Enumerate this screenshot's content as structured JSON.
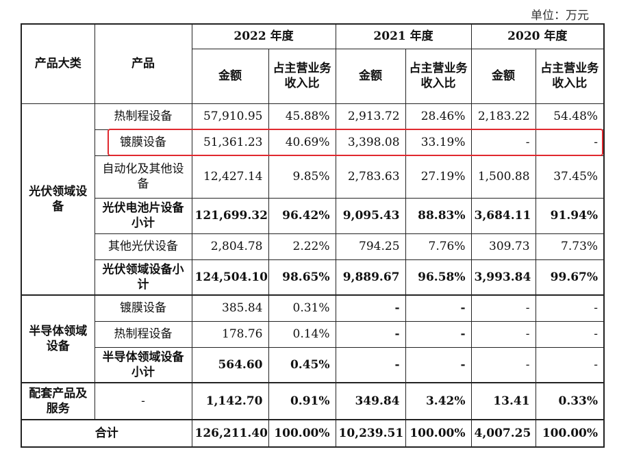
{
  "unit_label": "单位：万元",
  "header": {
    "col_category": "产品大类",
    "col_product": "产品",
    "years": [
      "2022 年度",
      "2021 年度",
      "2020 年度"
    ],
    "sub_amount": "金额",
    "sub_ratio": "占主营业务收入比"
  },
  "groups": {
    "pv": "光伏领域设备",
    "semi": "半导体领域设备",
    "support": "配套产品及服务"
  },
  "rows": [
    {
      "product": "热制程设备",
      "v": [
        "57,910.95",
        "45.88%",
        "2,913.72",
        "28.46%",
        "2,183.22",
        "54.48%"
      ]
    },
    {
      "product": "镀膜设备",
      "v": [
        "51,361.23",
        "40.69%",
        "3,398.08",
        "33.19%",
        "-",
        "-"
      ]
    },
    {
      "product": "自动化及其他设备",
      "v": [
        "12,427.14",
        "9.85%",
        "2,783.63",
        "27.19%",
        "1,500.88",
        "37.45%"
      ]
    },
    {
      "product": "光伏电池片设备小计",
      "v": [
        "121,699.32",
        "96.42%",
        "9,095.43",
        "88.83%",
        "3,684.11",
        "91.94%"
      ]
    },
    {
      "product": "其他光伏设备",
      "v": [
        "2,804.78",
        "2.22%",
        "794.25",
        "7.76%",
        "309.73",
        "7.73%"
      ]
    },
    {
      "product": "光伏领域设备小计",
      "v": [
        "124,504.10",
        "98.65%",
        "9,889.67",
        "96.58%",
        "3,993.84",
        "99.67%"
      ]
    },
    {
      "product": "镀膜设备",
      "v": [
        "385.84",
        "0.31%",
        "-",
        "-",
        "-",
        "-"
      ]
    },
    {
      "product": "热制程设备",
      "v": [
        "178.76",
        "0.14%",
        "-",
        "-",
        "-",
        "-"
      ]
    },
    {
      "product": "半导体领域设备小计",
      "v": [
        "564.60",
        "0.45%",
        "-",
        "-",
        "-",
        "-"
      ]
    },
    {
      "product": "-",
      "v": [
        "1,142.70",
        "0.91%",
        "349.84",
        "3.42%",
        "13.41",
        "0.33%"
      ]
    }
  ],
  "total": {
    "label": "合计",
    "v": [
      "126,211.40",
      "100.00%",
      "10,239.51",
      "100.00%",
      "4,007.25",
      "100.00%"
    ]
  }
}
